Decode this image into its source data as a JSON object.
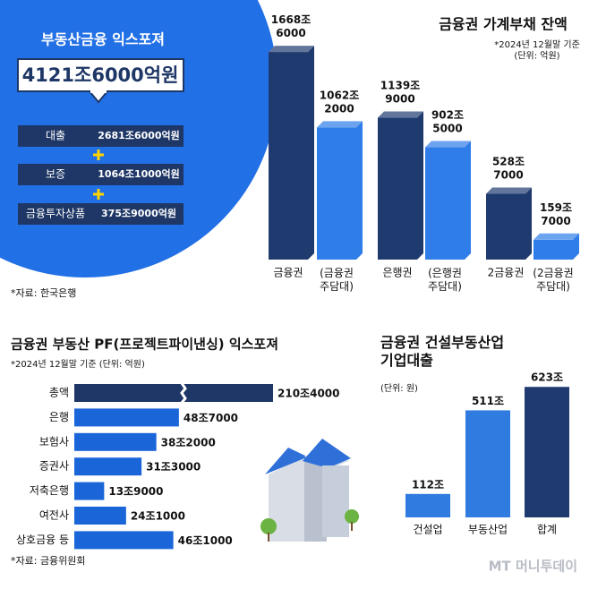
{
  "exposure_panel": {
    "title": "부동산금융 익스포져",
    "total": "4121조6000억원",
    "rows": [
      {
        "label": "대출",
        "value": "2681조6000억원"
      },
      {
        "label": "보증",
        "value": "1064조1000억원"
      },
      {
        "label": "금융투자상품",
        "value": "375조9000억원"
      }
    ],
    "source": "*자료: 한국은행"
  },
  "chart_data": [
    {
      "type": "bar3d",
      "title": "금융권 가계부채 잔액",
      "note": "*2024년 12월말 기준\n(단위: 억원)",
      "categories": [
        "금융권",
        "(금융권\n주담대)",
        "은행권",
        "(은행권\n주담대)",
        "2금융권",
        "(2금융권\n주담대)"
      ],
      "values": [
        1668.6,
        1062.2,
        1139.9,
        902.5,
        528.7,
        159.7
      ],
      "value_labels": [
        "1668조\n6000",
        "1062조\n2000",
        "1139조\n9000",
        "902조\n5000",
        "528조\n7000",
        "159조\n7000"
      ],
      "colors": [
        "#1f3a6e",
        "#2f7de8",
        "#1f3a6e",
        "#2f7de8",
        "#1f3a6e",
        "#2f7de8"
      ]
    },
    {
      "type": "hbar",
      "title": "금융권 부동산 PF(프로젝트파이낸싱) 익스포져",
      "note": "*2024년 12월말 기준 (단위: 억원)",
      "source": "*자료: 금융위원회",
      "categories": [
        "총액",
        "은행",
        "보험사",
        "증권사",
        "저축은행",
        "여전사",
        "상호금융 등"
      ],
      "values": [
        210.4,
        48.7,
        38.2,
        31.3,
        13.9,
        24.1,
        46.1
      ],
      "value_labels": [
        "210조4000",
        "48조7000",
        "38조2000",
        "31조3000",
        "13조9000",
        "24조1000",
        "46조1000"
      ],
      "colors": [
        "#1e3766",
        "#1a66d9",
        "#1a66d9",
        "#1a66d9",
        "#1a66d9",
        "#1a66d9",
        "#1a66d9"
      ],
      "axis_break": true
    },
    {
      "type": "bar",
      "title": "금융권 건설부동산업\n기업대출",
      "note": "(단위: 원)",
      "categories": [
        "건설업",
        "부동산업",
        "합계"
      ],
      "values": [
        112,
        511,
        623
      ],
      "value_labels": [
        "112조",
        "511조",
        "623조"
      ],
      "colors": [
        "#2f7be0",
        "#2f7be0",
        "#1f3a6e"
      ]
    }
  ],
  "footer_logo": "MT 머니투데이"
}
